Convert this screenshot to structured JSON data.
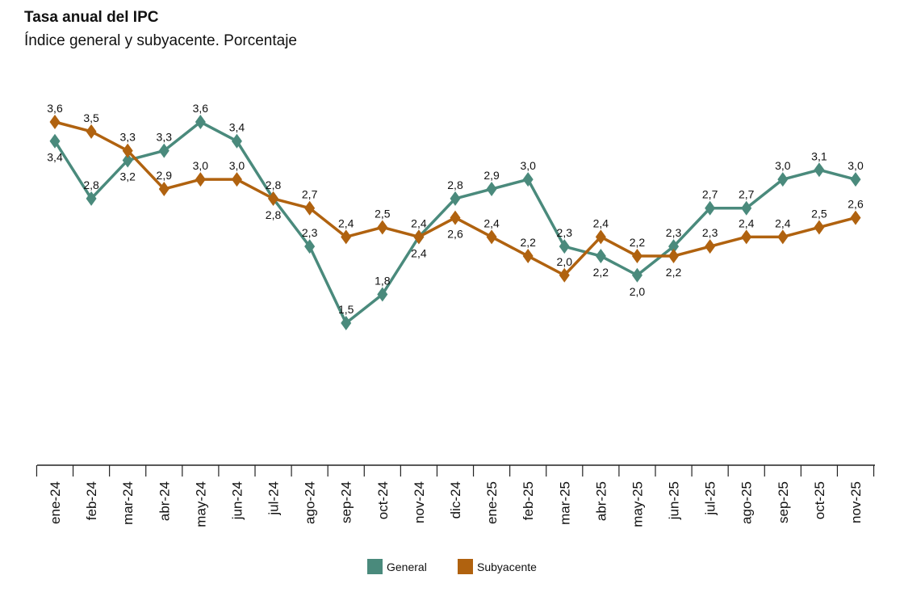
{
  "chart_data": {
    "type": "line",
    "title": "Tasa anual del IPC",
    "subtitle": "Índice general y subyacente. Porcentaje",
    "categories": [
      "ene-24",
      "feb-24",
      "mar-24",
      "abr-24",
      "may-24",
      "jun-24",
      "jul-24",
      "ago-24",
      "sep-24",
      "oct-24",
      "nov-24",
      "dic-24",
      "ene-25",
      "feb-25",
      "mar-25",
      "abr-25",
      "may-25",
      "jun-25",
      "jul-25",
      "ago-25",
      "sep-25",
      "oct-25",
      "nov-25"
    ],
    "series": [
      {
        "name": "General",
        "color": "#4a8a7c",
        "values": [
          3.4,
          2.8,
          3.2,
          3.3,
          3.6,
          3.4,
          2.8,
          2.3,
          1.5,
          1.8,
          2.4,
          2.8,
          2.9,
          3.0,
          2.3,
          2.2,
          2.0,
          2.3,
          2.7,
          2.7,
          3.0,
          3.1,
          3.0
        ]
      },
      {
        "name": "Subyacente",
        "color": "#b0620f",
        "values": [
          3.6,
          3.5,
          3.3,
          2.9,
          3.0,
          3.0,
          2.8,
          2.7,
          2.4,
          2.5,
          2.4,
          2.6,
          2.4,
          2.2,
          2.0,
          2.4,
          2.2,
          2.2,
          2.3,
          2.4,
          2.4,
          2.5,
          2.6
        ]
      }
    ],
    "legend": "bottom",
    "grid": false,
    "marker": "diamond",
    "decimal_separator": ","
  }
}
